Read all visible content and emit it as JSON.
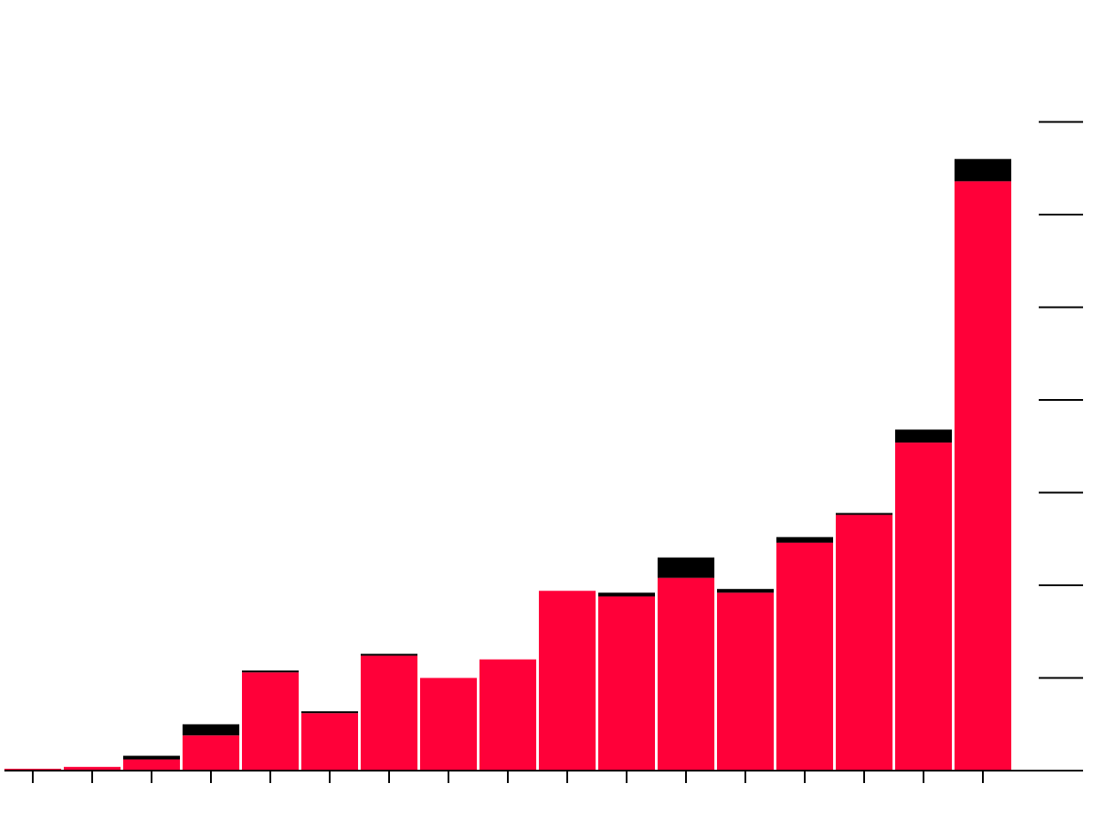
{
  "chart_data": {
    "type": "bar",
    "stacked": true,
    "categories": [
      "",
      "",
      "",
      "",
      "",
      "",
      "",
      "",
      "",
      "",
      "",
      "",
      "",
      "",
      "",
      "",
      ""
    ],
    "series": [
      {
        "color": "#ff0039",
        "values": [
          0.1,
          0.2,
          0.6,
          1.9,
          5.3,
          3.1,
          6.2,
          5.0,
          6.0,
          9.7,
          9.4,
          10.4,
          9.6,
          12.3,
          13.8,
          17.7,
          31.8
        ]
      },
      {
        "color": "#000000",
        "values": [
          0.0,
          0.0,
          0.2,
          0.6,
          0.1,
          0.1,
          0.1,
          0.0,
          0.0,
          0.0,
          0.2,
          1.1,
          0.2,
          0.3,
          0.1,
          0.7,
          1.2
        ]
      }
    ],
    "ylim": [
      0,
      35
    ],
    "y_ticks": [
      0,
      5,
      10,
      15,
      20,
      25,
      30,
      35
    ],
    "y_axis_position": "right",
    "y_tick_labels_visible": false,
    "x_tick_labels_visible": false,
    "grid": false,
    "legend": "none"
  }
}
